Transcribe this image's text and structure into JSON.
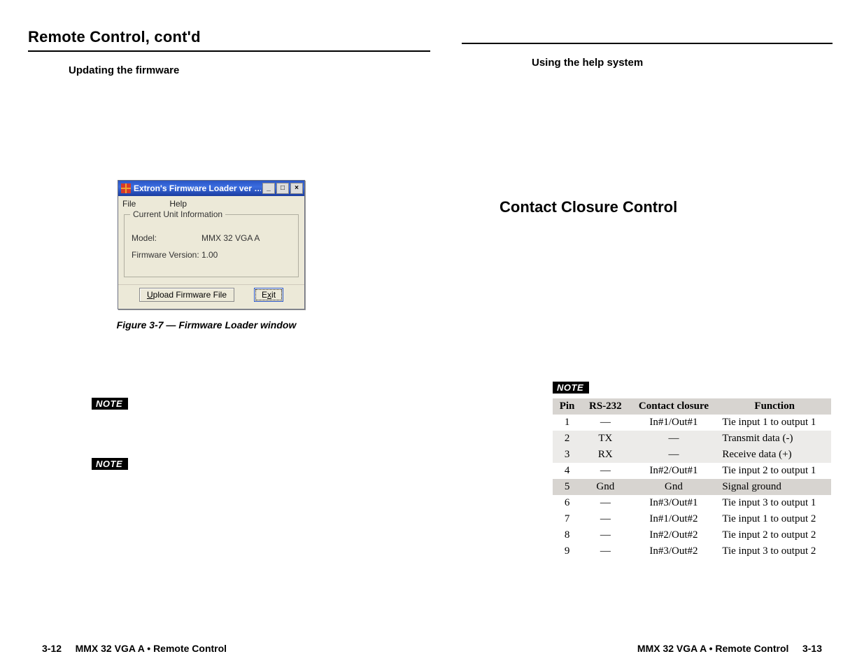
{
  "left": {
    "section_title": "Remote Control, cont'd",
    "subheading": "Updating the firmware",
    "fw_window": {
      "title": "Extron's Firmware Loader   ver …",
      "menu": {
        "file": "File",
        "help": "Help"
      },
      "group_label": "Current Unit Information",
      "model_label": "Model:",
      "model_value": "MMX 32 VGA A",
      "fwver_label": "Firmware Version:",
      "fwver_value": "1.00",
      "btn_upload": "Upload Firmware File",
      "btn_exit": "Exit",
      "colors": {
        "titlebar_gradient_top": "#2a56c6",
        "titlebar_gradient_mid": "#3b6de0",
        "titlebar_gradient_bottom": "#1b3ca0",
        "window_bg": "#ece9d8",
        "border": "#6b6f80"
      }
    },
    "figure_caption": "Figure 3-7 — Firmware Loader window",
    "note_label": "NOTE",
    "footer_page": "3-12",
    "footer_text": "MMX 32 VGA A • Remote Control"
  },
  "right": {
    "subheading": "Using the help system",
    "h2": "Contact Closure Control",
    "note_label": "NOTE",
    "table": {
      "columns": [
        "Pin",
        "RS-232",
        "Contact closure",
        "Function"
      ],
      "rows": [
        {
          "pin": "1",
          "rs232": "—",
          "cc": "In#1/Out#1",
          "fn": "Tie input 1 to output 1",
          "shade": "none"
        },
        {
          "pin": "2",
          "rs232": "TX",
          "cc": "—",
          "fn": "Transmit data (-)",
          "shade": "light"
        },
        {
          "pin": "3",
          "rs232": "RX",
          "cc": "—",
          "fn": "Receive data (+)",
          "shade": "light"
        },
        {
          "pin": "4",
          "rs232": "—",
          "cc": "In#2/Out#1",
          "fn": "Tie input 2 to output 1",
          "shade": "none"
        },
        {
          "pin": "5",
          "rs232": "Gnd",
          "cc": "Gnd",
          "fn": "Signal ground",
          "shade": "dark"
        },
        {
          "pin": "6",
          "rs232": "—",
          "cc": "In#3/Out#1",
          "fn": "Tie input 3 to output 1",
          "shade": "none"
        },
        {
          "pin": "7",
          "rs232": "—",
          "cc": "In#1/Out#2",
          "fn": "Tie input 1 to output 2",
          "shade": "none"
        },
        {
          "pin": "8",
          "rs232": "—",
          "cc": "In#2/Out#2",
          "fn": "Tie input 2 to output 2",
          "shade": "none"
        },
        {
          "pin": "9",
          "rs232": "—",
          "cc": "In#3/Out#2",
          "fn": "Tie input 3 to output 2",
          "shade": "none"
        }
      ],
      "header_bg": "#d7d4d0",
      "shade_light_bg": "#ecebe9",
      "shade_dark_bg": "#d7d4d0",
      "fontsize": 15
    },
    "footer_text": "MMX 32 VGA A • Remote Control",
    "footer_page": "3-13"
  }
}
